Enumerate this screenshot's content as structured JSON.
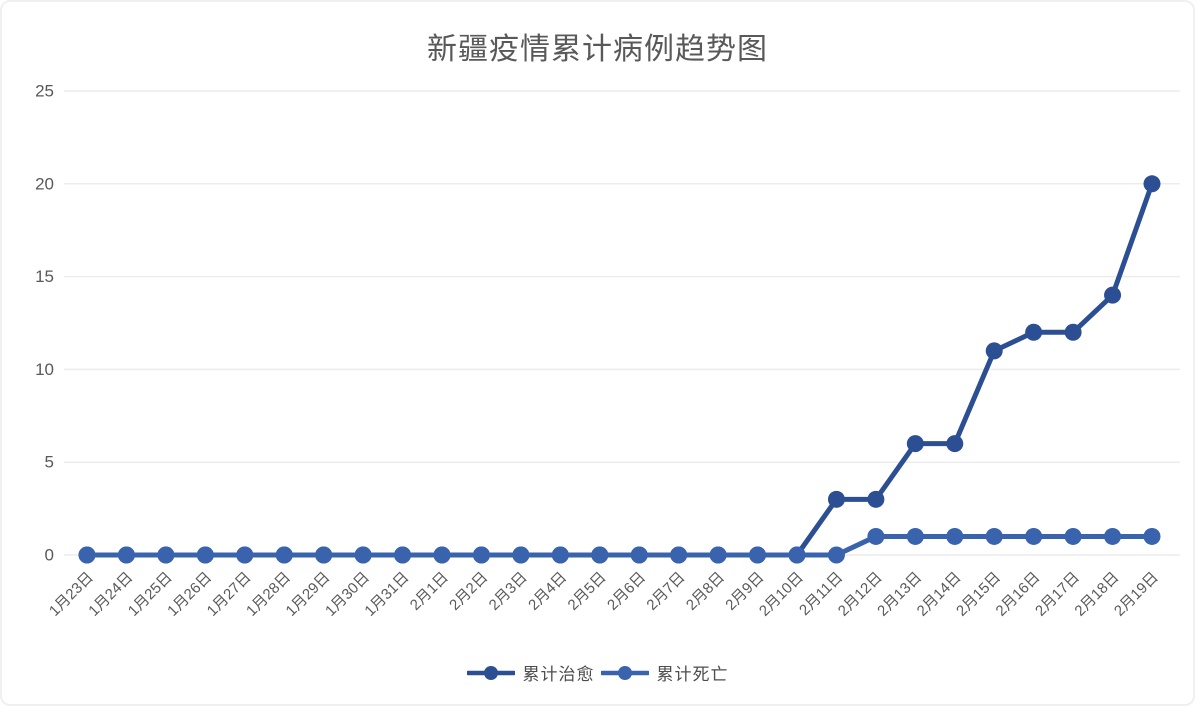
{
  "frame": {
    "background_color": "#ffffff",
    "border_color": "#f0f0f1"
  },
  "chart_data": {
    "type": "line",
    "title": "新疆疫情累计病例趋势图",
    "title_color": "#595959",
    "xlabel": "",
    "ylabel": "",
    "categories": [
      "1月23日",
      "1月24日",
      "1月25日",
      "1月26日",
      "1月27日",
      "1月28日",
      "1月29日",
      "1月30日",
      "1月31日",
      "2月1日",
      "2月2日",
      "2月3日",
      "2月4日",
      "2月5日",
      "2月6日",
      "2月7日",
      "2月8日",
      "2月9日",
      "2月10日",
      "2月11日",
      "2月12日",
      "2月13日",
      "2月14日",
      "2月15日",
      "2月16日",
      "2月17日",
      "2月18日",
      "2月19日"
    ],
    "series": [
      {
        "name": "累计治愈",
        "color": "#2c4f93",
        "values": [
          0,
          0,
          0,
          0,
          0,
          0,
          0,
          0,
          0,
          0,
          0,
          0,
          0,
          0,
          0,
          0,
          0,
          0,
          0,
          3,
          3,
          6,
          6,
          11,
          12,
          12,
          14,
          20
        ]
      },
      {
        "name": "累计死亡",
        "color": "#3a63ae",
        "values": [
          0,
          0,
          0,
          0,
          0,
          0,
          0,
          0,
          0,
          0,
          0,
          0,
          0,
          0,
          0,
          0,
          0,
          0,
          0,
          0,
          1,
          1,
          1,
          1,
          1,
          1,
          1,
          1
        ]
      }
    ],
    "ylim": [
      0,
      25
    ],
    "yticks": [
      0,
      5,
      10,
      15,
      20,
      25
    ],
    "grid": true,
    "gridline_color": "#ececec",
    "axis_label_color": "#595959",
    "x_label_rotation_deg": -45,
    "legend_position": "bottom",
    "marker": "circle"
  }
}
